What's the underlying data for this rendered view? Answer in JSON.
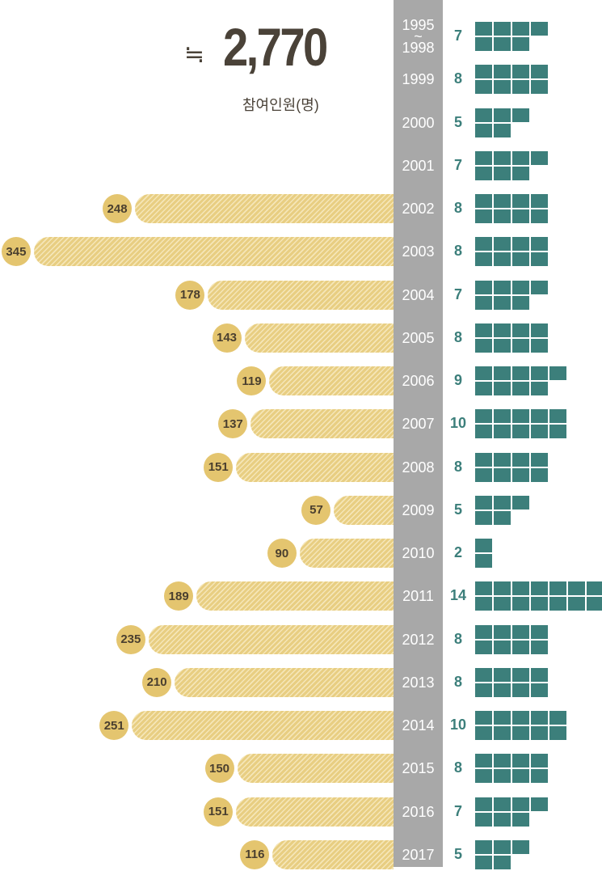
{
  "chart_data": {
    "type": "bar",
    "total_symbol": "≒",
    "total": "2,770",
    "total_label": "참여인원(명)",
    "categories": [
      "1995\n~\n1998",
      "1999",
      "2000",
      "2001",
      "2002",
      "2003",
      "2004",
      "2005",
      "2006",
      "2007",
      "2008",
      "2009",
      "2010",
      "2011",
      "2012",
      "2013",
      "2014",
      "2015",
      "2016",
      "2017"
    ],
    "series": [
      {
        "color": "#e8ce82",
        "values": [
          null,
          null,
          null,
          null,
          248,
          345,
          178,
          143,
          119,
          137,
          151,
          57,
          90,
          189,
          235,
          210,
          251,
          150,
          151,
          116
        ]
      },
      {
        "color": "#3c7f7b",
        "values": [
          7,
          8,
          5,
          7,
          8,
          8,
          7,
          8,
          9,
          10,
          8,
          5,
          2,
          14,
          8,
          8,
          10,
          8,
          7,
          5
        ]
      }
    ]
  }
}
